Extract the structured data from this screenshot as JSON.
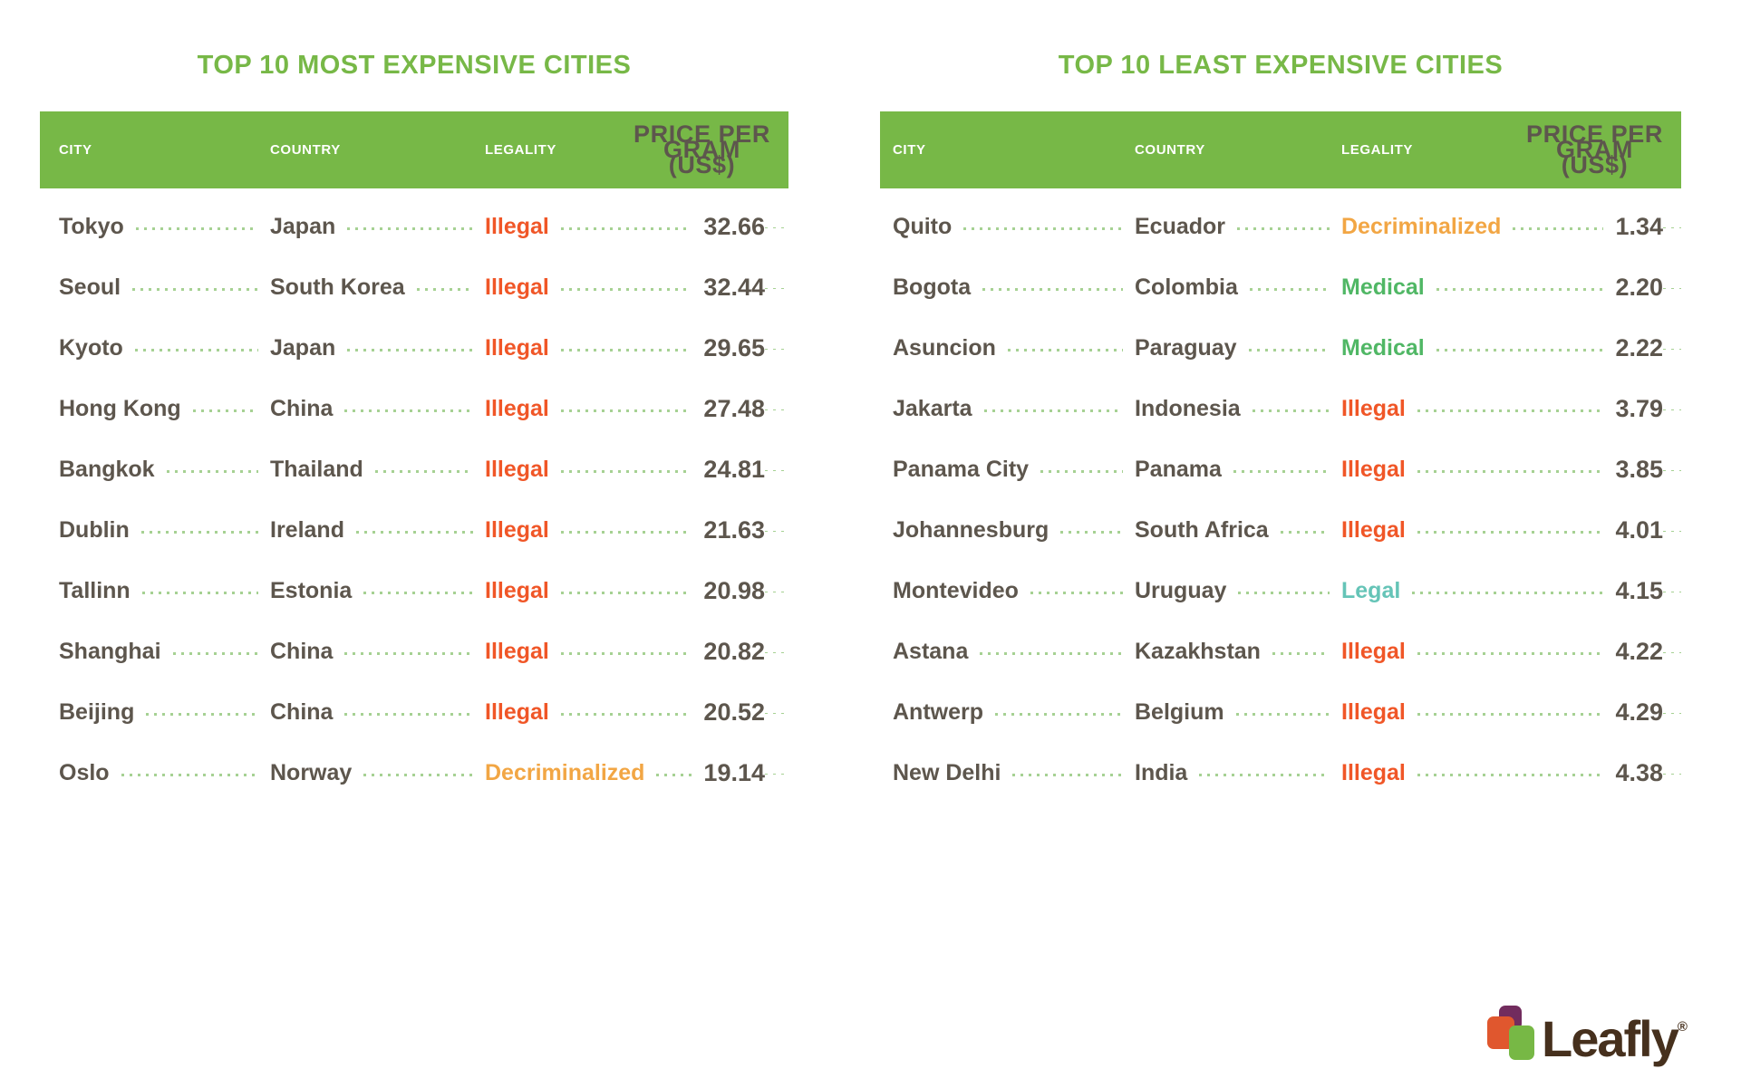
{
  "colors": {
    "brand_green": "#77b847",
    "leader_dots": "#a6d193",
    "text_gray": "#5d564d",
    "illegal": "#f05627",
    "decriminalized": "#f2a644",
    "medical": "#50b765",
    "legal": "#65c4b7",
    "logo_brown": "#46301d",
    "logo_purple": "#722c5e",
    "logo_orange": "#e0572e"
  },
  "tables": [
    {
      "title": "TOP 10 MOST EXPENSIVE CITIES",
      "headers": {
        "city": "CITY",
        "country": "COUNTRY",
        "legality": "LEGALITY",
        "price_lines": [
          "PRICE PER",
          "GRAM",
          "(US$)"
        ]
      },
      "rows": [
        {
          "city": "Tokyo",
          "country": "Japan",
          "legality": "Illegal",
          "status": "illegal",
          "price": "32.66"
        },
        {
          "city": "Seoul",
          "country": "South Korea",
          "legality": "Illegal",
          "status": "illegal",
          "price": "32.44"
        },
        {
          "city": "Kyoto",
          "country": "Japan",
          "legality": "Illegal",
          "status": "illegal",
          "price": "29.65"
        },
        {
          "city": "Hong Kong",
          "country": "China",
          "legality": "Illegal",
          "status": "illegal",
          "price": "27.48"
        },
        {
          "city": "Bangkok",
          "country": "Thailand",
          "legality": "Illegal",
          "status": "illegal",
          "price": "24.81"
        },
        {
          "city": "Dublin",
          "country": "Ireland",
          "legality": "Illegal",
          "status": "illegal",
          "price": "21.63"
        },
        {
          "city": "Tallinn",
          "country": "Estonia",
          "legality": "Illegal",
          "status": "illegal",
          "price": "20.98"
        },
        {
          "city": "Shanghai",
          "country": "China",
          "legality": "Illegal",
          "status": "illegal",
          "price": "20.82"
        },
        {
          "city": "Beijing",
          "country": "China",
          "legality": "Illegal",
          "status": "illegal",
          "price": "20.52"
        },
        {
          "city": "Oslo",
          "country": "Norway",
          "legality": "Decriminalized",
          "status": "decriminalized",
          "price": "19.14"
        }
      ]
    },
    {
      "title": "TOP 10 LEAST EXPENSIVE CITIES",
      "headers": {
        "city": "CITY",
        "country": "COUNTRY",
        "legality": "LEGALITY",
        "price_lines": [
          "PRICE PER",
          "GRAM",
          "(US$)"
        ]
      },
      "rows": [
        {
          "city": "Quito",
          "country": "Ecuador",
          "legality": "Decriminalized",
          "status": "decriminalized",
          "price": "1.34"
        },
        {
          "city": "Bogota",
          "country": "Colombia",
          "legality": "Medical",
          "status": "medical",
          "price": "2.20"
        },
        {
          "city": "Asuncion",
          "country": "Paraguay",
          "legality": "Medical",
          "status": "medical",
          "price": "2.22"
        },
        {
          "city": "Jakarta",
          "country": "Indonesia",
          "legality": "Illegal",
          "status": "illegal",
          "price": "3.79"
        },
        {
          "city": "Panama City",
          "country": "Panama",
          "legality": "Illegal",
          "status": "illegal",
          "price": "3.85"
        },
        {
          "city": "Johannesburg",
          "country": "South Africa",
          "legality": "Illegal",
          "status": "illegal",
          "price": "4.01"
        },
        {
          "city": "Montevideo",
          "country": "Uruguay",
          "legality": "Legal",
          "status": "legal",
          "price": "4.15"
        },
        {
          "city": "Astana",
          "country": "Kazakhstan",
          "legality": "Illegal",
          "status": "illegal",
          "price": "4.22"
        },
        {
          "city": "Antwerp",
          "country": "Belgium",
          "legality": "Illegal",
          "status": "illegal",
          "price": "4.29"
        },
        {
          "city": "New Delhi",
          "country": "India",
          "legality": "Illegal",
          "status": "illegal",
          "price": "4.38"
        }
      ]
    }
  ],
  "chart_data": [
    {
      "type": "table",
      "title": "TOP 10 MOST EXPENSIVE CITIES",
      "columns": [
        "CITY",
        "COUNTRY",
        "LEGALITY",
        "PRICE PER GRAM (US$)"
      ],
      "categories": [
        "Tokyo",
        "Seoul",
        "Kyoto",
        "Hong Kong",
        "Bangkok",
        "Dublin",
        "Tallinn",
        "Shanghai",
        "Beijing",
        "Oslo"
      ],
      "countries": [
        "Japan",
        "South Korea",
        "Japan",
        "China",
        "Thailand",
        "Ireland",
        "Estonia",
        "China",
        "China",
        "Norway"
      ],
      "legality": [
        "Illegal",
        "Illegal",
        "Illegal",
        "Illegal",
        "Illegal",
        "Illegal",
        "Illegal",
        "Illegal",
        "Illegal",
        "Decriminalized"
      ],
      "values": [
        32.66,
        32.44,
        29.65,
        27.48,
        24.81,
        21.63,
        20.98,
        20.82,
        20.52,
        19.14
      ]
    },
    {
      "type": "table",
      "title": "TOP 10 LEAST EXPENSIVE CITIES",
      "columns": [
        "CITY",
        "COUNTRY",
        "LEGALITY",
        "PRICE PER GRAM (US$)"
      ],
      "categories": [
        "Quito",
        "Bogota",
        "Asuncion",
        "Jakarta",
        "Panama City",
        "Johannesburg",
        "Montevideo",
        "Astana",
        "Antwerp",
        "New Delhi"
      ],
      "countries": [
        "Ecuador",
        "Colombia",
        "Paraguay",
        "Indonesia",
        "Panama",
        "South Africa",
        "Uruguay",
        "Kazakhstan",
        "Belgium",
        "India"
      ],
      "legality": [
        "Decriminalized",
        "Medical",
        "Medical",
        "Illegal",
        "Illegal",
        "Illegal",
        "Legal",
        "Illegal",
        "Illegal",
        "Illegal"
      ],
      "values": [
        1.34,
        2.2,
        2.22,
        3.79,
        3.85,
        4.01,
        4.15,
        4.22,
        4.29,
        4.38
      ]
    }
  ],
  "footer": {
    "logo_text": "Leafly",
    "registered_mark": "®"
  }
}
